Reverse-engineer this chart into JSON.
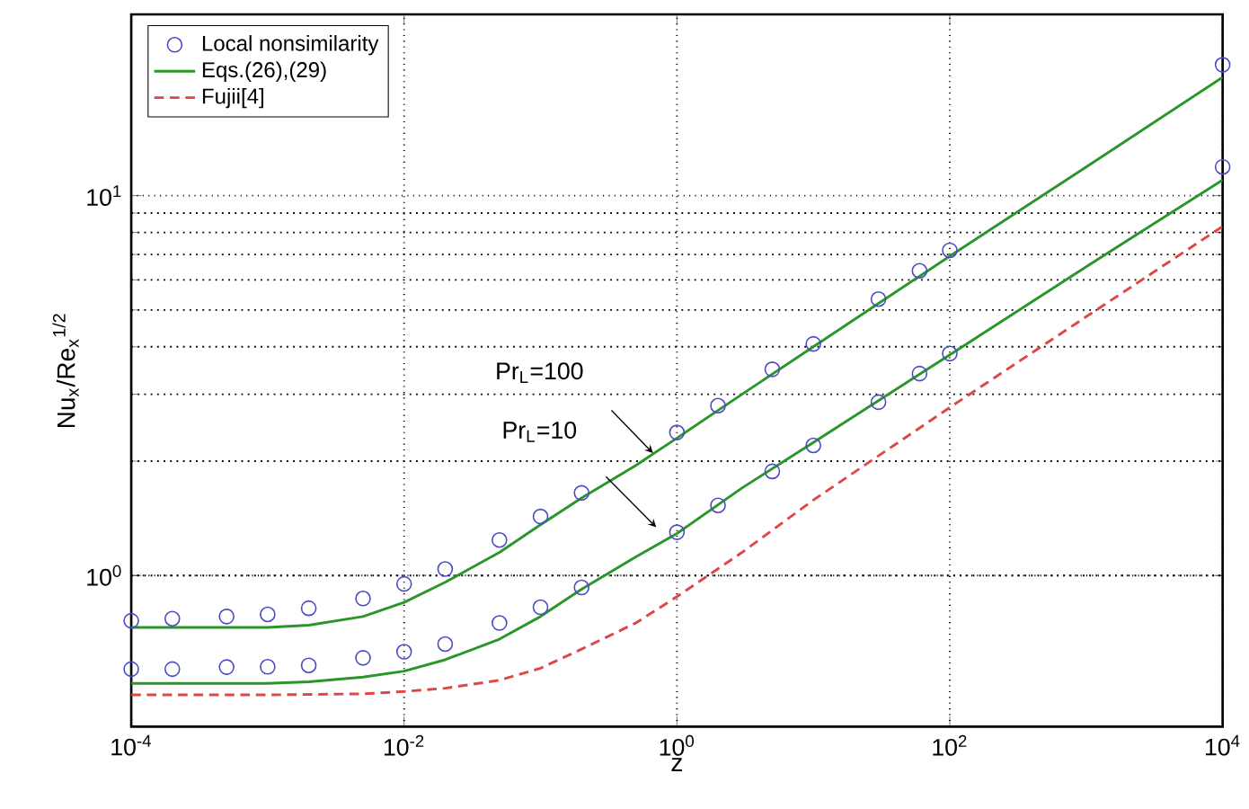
{
  "chart_data": {
    "type": "line",
    "xlabel": "z",
    "ylabel": "Nu$_{x}$/Re$_{x}$$^{1/2}$",
    "log": "xy",
    "grid": true,
    "legend": "top left",
    "xlim": [
      0.0001,
      10000
    ],
    "ylim": [
      0.4,
      30
    ],
    "xticks": [
      {
        "value": 0.0001,
        "label": "10$^{-4}$"
      },
      {
        "value": 0.01,
        "label": "10$^{-2}$"
      },
      {
        "value": 1,
        "label": "10$^{0}$"
      },
      {
        "value": 100,
        "label": "10$^{2}$"
      },
      {
        "value": 10000,
        "label": "10$^{4}$"
      }
    ],
    "yticks": [
      {
        "value": 1,
        "label": "10$^{0}$"
      },
      {
        "value": 10,
        "label": "10$^{1}$"
      }
    ],
    "series": [
      {
        "name": "Local nonsimilarity",
        "type": "scatter",
        "marker": "circle",
        "color": "#4a4ac8",
        "x": [
          0.0001,
          0.0002,
          0.0005,
          0.001,
          0.002,
          0.005,
          0.01,
          0.02,
          0.05,
          0.1,
          0.2,
          1,
          2,
          5,
          10,
          30,
          60,
          100,
          10000
        ],
        "values": [
          0.76,
          0.77,
          0.78,
          0.79,
          0.82,
          0.87,
          0.95,
          1.04,
          1.24,
          1.43,
          1.65,
          2.38,
          2.8,
          3.49,
          4.07,
          5.34,
          6.34,
          7.18,
          22.1
        ]
      },
      {
        "type": "scatter",
        "marker": "circle",
        "color": "#4a4ac8",
        "x": [
          0.0001,
          0.0002,
          0.0005,
          0.001,
          0.002,
          0.005,
          0.01,
          0.02,
          0.05,
          0.1,
          0.2,
          1,
          2,
          5,
          10,
          30,
          60,
          100,
          10000
        ],
        "values": [
          0.567,
          0.567,
          0.574,
          0.575,
          0.58,
          0.607,
          0.63,
          0.66,
          0.75,
          0.825,
          0.93,
          1.3,
          1.53,
          1.88,
          2.2,
          2.86,
          3.4,
          3.84,
          11.9
        ]
      },
      {
        "name": "Eqs.(26),(29)",
        "line_style": "solid",
        "color": "#2a962a",
        "x": [
          0.0001,
          0.001,
          0.002,
          0.005,
          0.01,
          0.02,
          0.05,
          0.1,
          0.2,
          0.5,
          1,
          3,
          10,
          100,
          1000,
          10000
        ],
        "values": [
          0.73,
          0.73,
          0.74,
          0.78,
          0.85,
          0.96,
          1.15,
          1.36,
          1.6,
          1.95,
          2.3,
          3.0,
          4.0,
          6.93,
          11.9,
          20.5
        ]
      },
      {
        "line_style": "solid",
        "color": "#2a962a",
        "x": [
          0.0001,
          0.001,
          0.002,
          0.005,
          0.01,
          0.02,
          0.05,
          0.1,
          0.2,
          0.5,
          1,
          3,
          10,
          100,
          1000,
          10000
        ],
        "values": [
          0.52,
          0.52,
          0.525,
          0.54,
          0.56,
          0.6,
          0.68,
          0.78,
          0.92,
          1.12,
          1.29,
          1.7,
          2.24,
          3.81,
          6.5,
          11.0
        ]
      },
      {
        "name": "Fujii[4]",
        "line_style": "dashed",
        "color": "#e04646",
        "x": [
          0.0001,
          0.001,
          0.005,
          0.01,
          0.02,
          0.05,
          0.1,
          0.2,
          0.5,
          1,
          3,
          10,
          100,
          1000,
          10000
        ],
        "values": [
          0.485,
          0.485,
          0.488,
          0.495,
          0.505,
          0.53,
          0.57,
          0.64,
          0.75,
          0.88,
          1.15,
          1.58,
          2.77,
          4.8,
          8.3
        ]
      }
    ],
    "annotations": [
      "Pr$_{L}$=100",
      "Pr$_{L}$=10"
    ]
  }
}
